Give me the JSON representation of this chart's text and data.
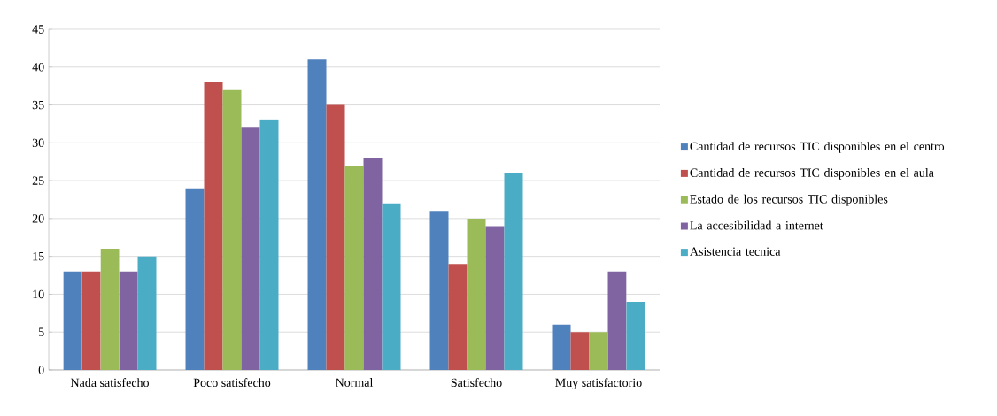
{
  "chart_data": {
    "type": "bar",
    "categories": [
      "Nada satisfecho",
      "Poco satisfecho",
      "Normal",
      "Satisfecho",
      "Muy satisfactorio"
    ],
    "series": [
      {
        "name": "Cantidad de recursos TIC disponibles en el centro",
        "color": "#4f81bd",
        "values": [
          13,
          24,
          41,
          21,
          6
        ]
      },
      {
        "name": "Cantidad de recursos TIC disponibles en el aula",
        "color": "#c0504d",
        "values": [
          13,
          38,
          35,
          14,
          5
        ]
      },
      {
        "name": "Estado de los recursos TIC disponibles",
        "color": "#9bbb59",
        "values": [
          16,
          37,
          27,
          20,
          5
        ]
      },
      {
        "name": "La accesibilidad a internet",
        "color": "#8064a2",
        "values": [
          13,
          32,
          28,
          19,
          13
        ]
      },
      {
        "name": "Asistencia tecnica",
        "color": "#4bacc6",
        "values": [
          15,
          33,
          22,
          26,
          9
        ]
      }
    ],
    "ylim": [
      0,
      45
    ],
    "yticks": [
      0,
      5,
      10,
      15,
      20,
      25,
      30,
      35,
      40,
      45
    ],
    "grid": "y",
    "legend": "right"
  }
}
